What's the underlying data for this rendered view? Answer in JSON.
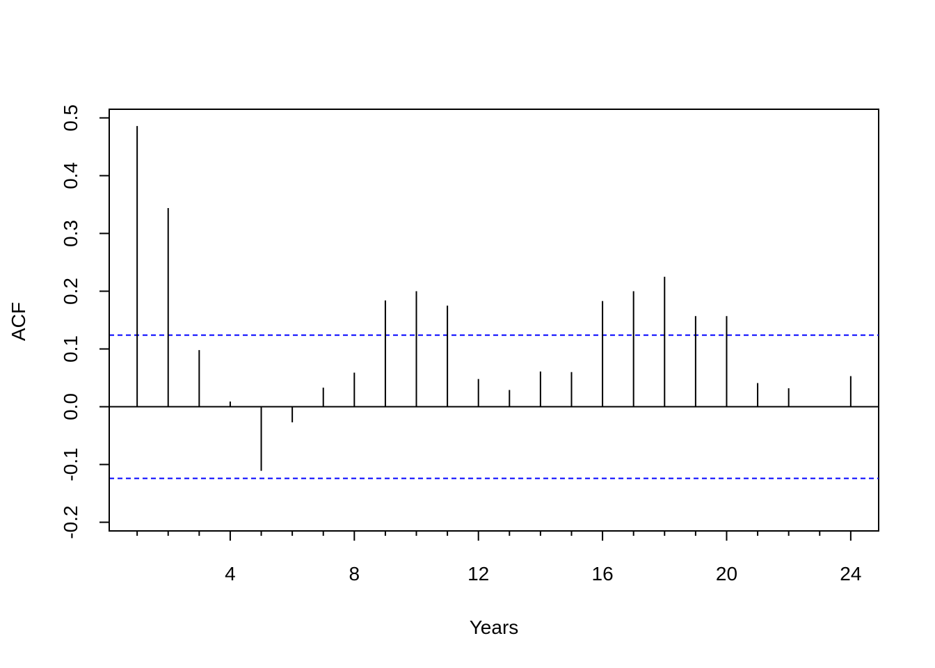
{
  "chart_data": {
    "type": "bar",
    "xlabel": "Years",
    "ylabel": "ACF",
    "xlim": [
      0.1,
      24.9
    ],
    "ylim": [
      -0.215,
      0.515
    ],
    "x_ticks": [
      4,
      8,
      12,
      16,
      20,
      24
    ],
    "x_tick_labels": [
      "4",
      "8",
      "12",
      "16",
      "20",
      "24"
    ],
    "minor_x_ticks": [
      1,
      2,
      3,
      5,
      6,
      7,
      9,
      10,
      11,
      13,
      14,
      15,
      17,
      18,
      19,
      21,
      22,
      23
    ],
    "y_ticks": [
      -0.2,
      -0.1,
      0.0,
      0.1,
      0.2,
      0.3,
      0.4,
      0.5
    ],
    "y_tick_labels": [
      "-0.2",
      "-0.1",
      "0.0",
      "0.1",
      "0.2",
      "0.3",
      "0.4",
      "0.5"
    ],
    "lags": [
      1,
      2,
      3,
      4,
      5,
      6,
      7,
      8,
      9,
      10,
      11,
      12,
      13,
      14,
      15,
      16,
      17,
      18,
      19,
      20,
      21,
      22,
      23,
      24
    ],
    "values": [
      0.486,
      0.344,
      0.098,
      0.009,
      -0.111,
      -0.027,
      0.033,
      0.059,
      0.184,
      0.2,
      0.175,
      0.048,
      0.029,
      0.061,
      0.06,
      0.183,
      0.2,
      0.225,
      0.157,
      0.157,
      0.041,
      0.032,
      0.0,
      0.053
    ],
    "confidence_bound": 0.124,
    "confidence_color": "#0000ff",
    "grid": false,
    "legend": "none"
  }
}
